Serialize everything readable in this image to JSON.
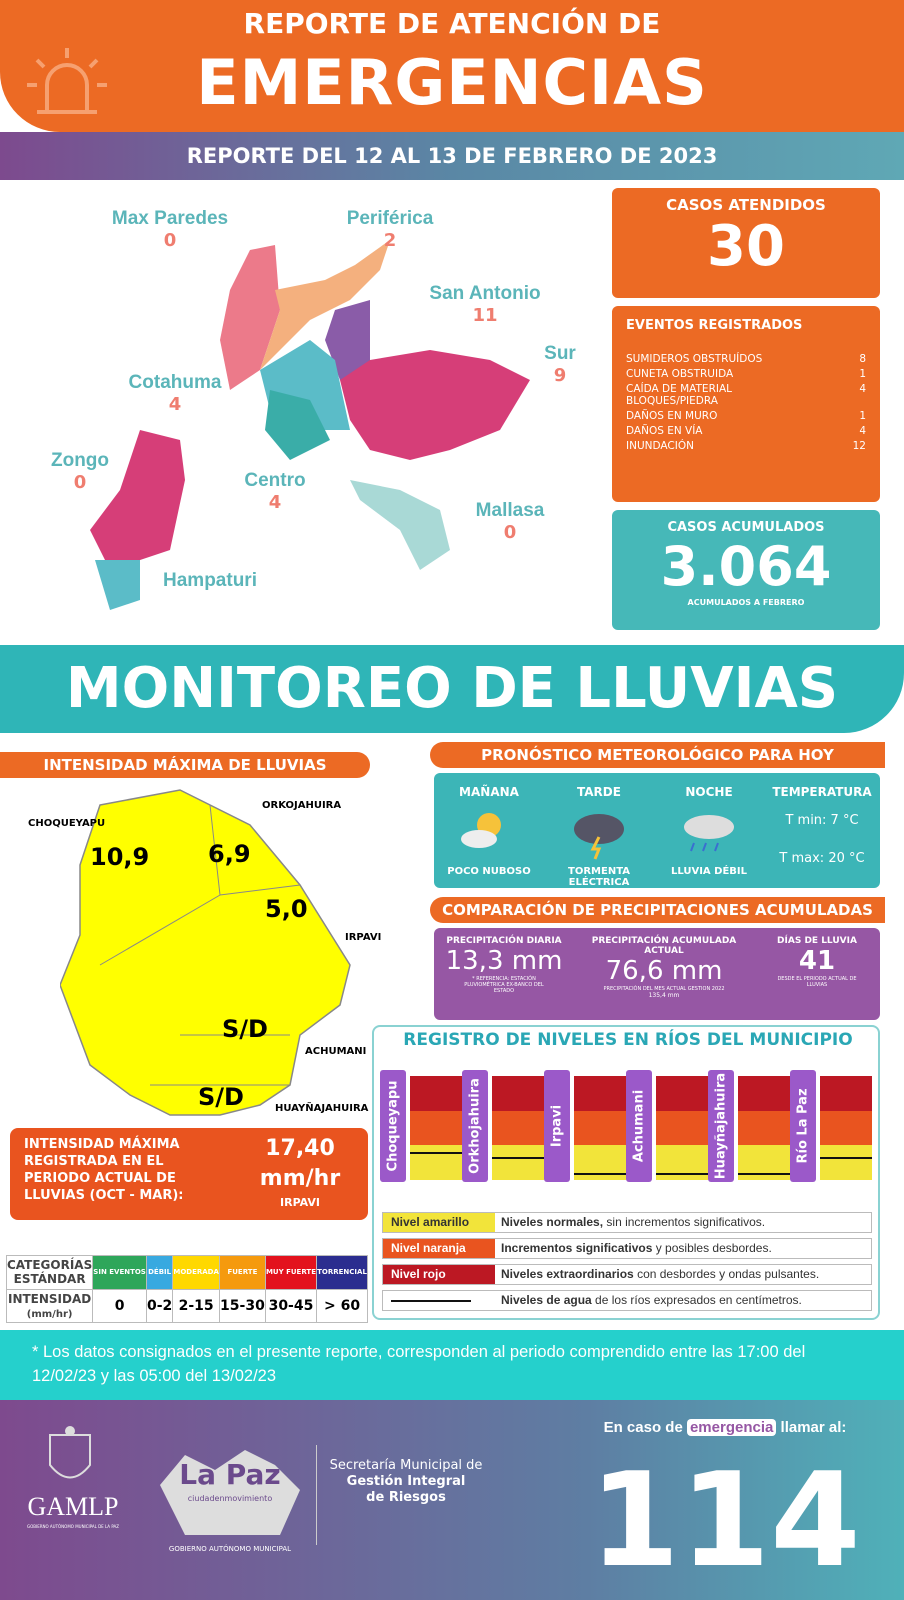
{
  "header": {
    "title_line1": "REPORTE DE ATENCIÓN DE",
    "title_line2": "EMERGENCIAS",
    "date_range": "REPORTE DEL 12 AL 13 DE FEBRERO DE 2023",
    "icon": "siren-icon"
  },
  "districts": [
    {
      "name": "Max Paredes",
      "cases": "0"
    },
    {
      "name": "Periférica",
      "cases": "2"
    },
    {
      "name": "San Antonio",
      "cases": "11"
    },
    {
      "name": "Sur",
      "cases": "9"
    },
    {
      "name": "Cotahuma",
      "cases": "4"
    },
    {
      "name": "Zongo",
      "cases": "0"
    },
    {
      "name": "Centro",
      "cases": "4"
    },
    {
      "name": "Mallasa",
      "cases": "0"
    },
    {
      "name": "Hampaturi",
      "cases": ""
    }
  ],
  "casos_atendidos": {
    "label": "CASOS ATENDIDOS",
    "value": "30"
  },
  "eventos": {
    "title": "EVENTOS REGISTRADOS",
    "items": [
      {
        "label": "SUMIDEROS OBSTRUÍDOS",
        "value": "8"
      },
      {
        "label": "CUNETA OBSTRUIDA",
        "value": "1"
      },
      {
        "label": "CAÍDA DE MATERIAL BLOQUES/PIEDRA",
        "value": "4"
      },
      {
        "label": "DAÑOS EN MURO",
        "value": "1"
      },
      {
        "label": "DAÑOS EN VÍA",
        "value": "4"
      },
      {
        "label": "INUNDACIÓN",
        "value": "12"
      }
    ]
  },
  "casos_acumulados": {
    "label": "CASOS ACUMULADOS",
    "value": "3.064",
    "note": "ACUMULADOS A FEBRERO"
  },
  "monitoreo_title": "MONITOREO DE LLUVIAS",
  "intensidad": {
    "title": "INTENSIDAD MÁXIMA DE LLUVIAS",
    "stations": [
      {
        "name": "CHOQUEYAPU",
        "value": "10,9"
      },
      {
        "name": "ORKOJAHUIRA",
        "value": "6,9"
      },
      {
        "name": "IRPAVI",
        "value": "5,0"
      },
      {
        "name": "ACHUMANI",
        "value": "S/D"
      },
      {
        "name": "HUAYÑAJAHUIRA",
        "value": "S/D"
      }
    ],
    "max_label": "INTENSIDAD MÁXIMA REGISTRADA EN EL PERIODO ACTUAL DE LLUVIAS (OCT - MAR):",
    "max_value": "17,40",
    "max_unit": "mm/hr",
    "max_station": "IRPAVI"
  },
  "categorias": {
    "row1_label": "CATEGORÍAS ESTÁNDAR",
    "row2_label": "INTENSIDAD",
    "row2_unit": "(mm/hr)",
    "items": [
      {
        "name": "SIN EVENTOS",
        "range": "0",
        "color": "#2ea65a"
      },
      {
        "name": "DÉBIL",
        "range": "0-2",
        "color": "#38a9e0"
      },
      {
        "name": "MODERADA",
        "range": "2-15",
        "color": "#ffd800"
      },
      {
        "name": "FUERTE",
        "range": "15-30",
        "color": "#f59a0e"
      },
      {
        "name": "MUY FUERTE",
        "range": "30-45",
        "color": "#e3121d"
      },
      {
        "name": "TORRENCIAL",
        "range": "> 60",
        "color": "#2b2d8f"
      }
    ]
  },
  "pronostico": {
    "title": "PRONÓSTICO METEOROLÓGICO PARA HOY",
    "periods": [
      {
        "label": "MAÑANA",
        "desc": "POCO NUBOSO",
        "icon": "partly-cloudy-icon"
      },
      {
        "label": "TARDE",
        "desc": "TORMENTA ELÉCTRICA",
        "icon": "thunderstorm-icon"
      },
      {
        "label": "NOCHE",
        "desc": "LLUVIA DÉBIL",
        "icon": "light-rain-icon"
      }
    ],
    "temp_label": "TEMPERATURA",
    "tmin": "T min:  7 °C",
    "tmax": "T max: 20 °C"
  },
  "comparacion": {
    "title": "COMPARACIÓN DE PRECIPITACIONES ACUMULADAS",
    "diaria_label": "PRECIPITACIÓN DIARIA",
    "diaria_value": "13,3 mm",
    "diaria_note": "* REFERENCIA: ESTACIÓN PLUVIOMÉTRICA EX-BANCO DEL ESTADO",
    "acum_label": "PRECIPITACIÓN ACUMULADA ACTUAL",
    "acum_value": "76,6 mm",
    "acum_note": "PRECIPITACIÓN DEL MES ACTUAL GESTION 2022",
    "acum_note2": "135,4 mm",
    "dias_label": "DÍAS DE LLUVIA",
    "dias_value": "41",
    "dias_note": "DESDE EL PERIODO ACTUAL DE LLUVIAS"
  },
  "rios": {
    "title": "REGISTRO DE NIVELES EN RÍOS DEL MUNICIPIO",
    "items": [
      {
        "name": "Choqueyapu",
        "level": 0.25
      },
      {
        "name": "Orkhojahuira",
        "level": 0.2
      },
      {
        "name": "Irpavi",
        "level": 0.05
      },
      {
        "name": "Achumani",
        "level": 0.05
      },
      {
        "name": "Huayñajahuira",
        "level": 0.05
      },
      {
        "name": "Río La Paz",
        "level": 0.2
      }
    ],
    "legend": [
      {
        "key": "Nivel amarillo",
        "bold": "Niveles normales,",
        "text": " sin incrementos significativos.",
        "color": "#f2e43a"
      },
      {
        "key": "Nivel naranja",
        "bold": "Incrementos significativos",
        "text": " y posibles desbordes.",
        "color": "#e9541f"
      },
      {
        "key": "Nivel rojo",
        "bold": "Niveles extraordinarios",
        "text": " con desbordes y ondas pulsantes.",
        "color": "#bc1823"
      },
      {
        "key": "",
        "bold": "Niveles de agua",
        "text": " de los ríos expresados en centímetros.",
        "color": "#ffffff"
      }
    ]
  },
  "footnote": "* Los datos consignados en el presente reporte, corresponden al periodo comprendido entre las 17:00 del 12/02/23 y las 05:00 del 13/02/23",
  "footer": {
    "gamlp": "GAMLP",
    "gamlp_sub": "GOBIERNO AUTÓNOMO MUNICIPAL DE LA PAZ",
    "lapaz": "La Paz",
    "lapaz_sub": "ciudadenmovimiento",
    "gob": "GOBIERNO AUTÓNOMO MUNICIPAL",
    "sec1": "Secretaría Municipal de",
    "sec2": "Gestión Integral",
    "sec3": "de Riesgos",
    "call_pre": "En caso de",
    "call_hl": "emergencia",
    "call_post": "llamar al:",
    "phone": "114"
  }
}
